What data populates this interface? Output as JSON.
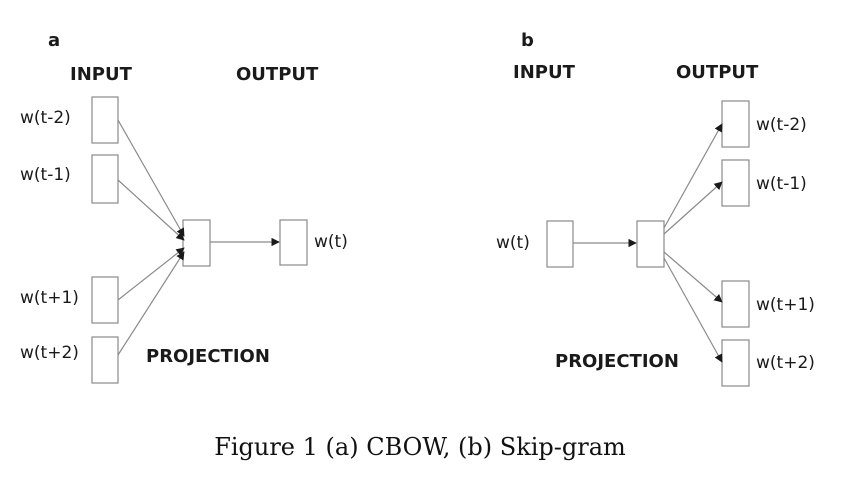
{
  "panels": {
    "a": {
      "letter": "a",
      "input_header": "INPUT",
      "output_header": "OUTPUT",
      "projection_label": "PROJECTION",
      "inputs": [
        "w(t-2)",
        "w(t-1)",
        "w(t+1)",
        "w(t+2)"
      ],
      "output": "w(t)"
    },
    "b": {
      "letter": "b",
      "input_header": "INPUT",
      "output_header": "OUTPUT",
      "projection_label": "PROJECTION",
      "input": "w(t)",
      "outputs": [
        "w(t-2)",
        "w(t-1)",
        "w(t+1)",
        "w(t+2)"
      ]
    }
  },
  "caption": "Figure 1 (a) CBOW, (b) Skip-gram",
  "colors": {
    "box_stroke": "#8a8a8a",
    "text": "#1a1a1a"
  }
}
